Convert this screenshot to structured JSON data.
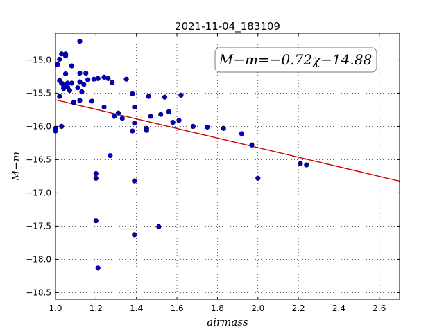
{
  "chart_data": {
    "type": "scatter",
    "title": "2021-11-04_183109",
    "xlabel": "airmass",
    "ylabel": "M−m",
    "xlim": [
      1.0,
      2.7
    ],
    "ylim": [
      -18.6,
      -14.6
    ],
    "y_inverted": true,
    "xticks": [
      1.0,
      1.2,
      1.4,
      1.6,
      1.8,
      2.0,
      2.2,
      2.4,
      2.6
    ],
    "xtick_labels": [
      "1.0",
      "1.2",
      "1.4",
      "1.6",
      "1.8",
      "2.0",
      "2.2",
      "2.4",
      "2.6"
    ],
    "yticks": [
      -15.0,
      -15.5,
      -16.0,
      -16.5,
      -17.0,
      -17.5,
      -18.0,
      -18.5
    ],
    "ytick_labels": [
      "−15.0",
      "−15.5",
      "−16.0",
      "−16.5",
      "−17.0",
      "−17.5",
      "−18.0",
      "−18.5"
    ],
    "grid": true,
    "annotation": "M−m=−0.72χ−14.88",
    "fit": {
      "slope": -0.72,
      "intercept": -14.88,
      "color": "#cc0000"
    },
    "marker_color": "#0000cc",
    "points": [
      [
        1.0,
        -16.03
      ],
      [
        1.0,
        -16.07
      ],
      [
        1.01,
        -15.07
      ],
      [
        1.02,
        -14.99
      ],
      [
        1.02,
        -15.31
      ],
      [
        1.02,
        -15.55
      ],
      [
        1.03,
        -14.91
      ],
      [
        1.03,
        -15.35
      ],
      [
        1.03,
        -16.0
      ],
      [
        1.04,
        -15.38
      ],
      [
        1.04,
        -15.43
      ],
      [
        1.05,
        -14.91
      ],
      [
        1.05,
        -14.94
      ],
      [
        1.05,
        -15.21
      ],
      [
        1.06,
        -15.35
      ],
      [
        1.06,
        -15.41
      ],
      [
        1.07,
        -15.46
      ],
      [
        1.08,
        -15.35
      ],
      [
        1.08,
        -15.09
      ],
      [
        1.09,
        -15.64
      ],
      [
        1.11,
        -15.42
      ],
      [
        1.12,
        -14.72
      ],
      [
        1.12,
        -15.2
      ],
      [
        1.12,
        -15.33
      ],
      [
        1.12,
        -15.61
      ],
      [
        1.13,
        -15.48
      ],
      [
        1.14,
        -15.37
      ],
      [
        1.15,
        -15.2
      ],
      [
        1.16,
        -15.3
      ],
      [
        1.18,
        -15.62
      ],
      [
        1.19,
        -15.29
      ],
      [
        1.21,
        -15.28
      ],
      [
        1.24,
        -15.26
      ],
      [
        1.24,
        -15.71
      ],
      [
        1.26,
        -15.28
      ],
      [
        1.27,
        -16.44
      ],
      [
        1.28,
        -15.34
      ],
      [
        1.29,
        -15.85
      ],
      [
        1.31,
        -15.8
      ],
      [
        1.33,
        -15.88
      ],
      [
        1.35,
        -15.29
      ],
      [
        1.38,
        -16.07
      ],
      [
        1.38,
        -15.51
      ],
      [
        1.39,
        -15.95
      ],
      [
        1.39,
        -15.71
      ],
      [
        1.45,
        -16.06
      ],
      [
        1.45,
        -16.03
      ],
      [
        1.46,
        -15.55
      ],
      [
        1.47,
        -15.85
      ],
      [
        1.52,
        -15.82
      ],
      [
        1.54,
        -15.56
      ],
      [
        1.56,
        -15.78
      ],
      [
        1.58,
        -15.94
      ],
      [
        1.61,
        -15.91
      ],
      [
        1.62,
        -15.53
      ],
      [
        1.68,
        -16.0
      ],
      [
        1.75,
        -16.01
      ],
      [
        1.83,
        -16.03
      ],
      [
        1.92,
        -16.11
      ],
      [
        1.97,
        -16.28
      ],
      [
        2.0,
        -16.78
      ],
      [
        2.21,
        -16.56
      ],
      [
        2.24,
        -16.58
      ],
      [
        1.2,
        -16.71
      ],
      [
        1.2,
        -16.78
      ],
      [
        1.39,
        -16.82
      ],
      [
        1.2,
        -17.42
      ],
      [
        1.51,
        -17.51
      ],
      [
        1.39,
        -17.63
      ],
      [
        1.21,
        -18.13
      ]
    ]
  }
}
